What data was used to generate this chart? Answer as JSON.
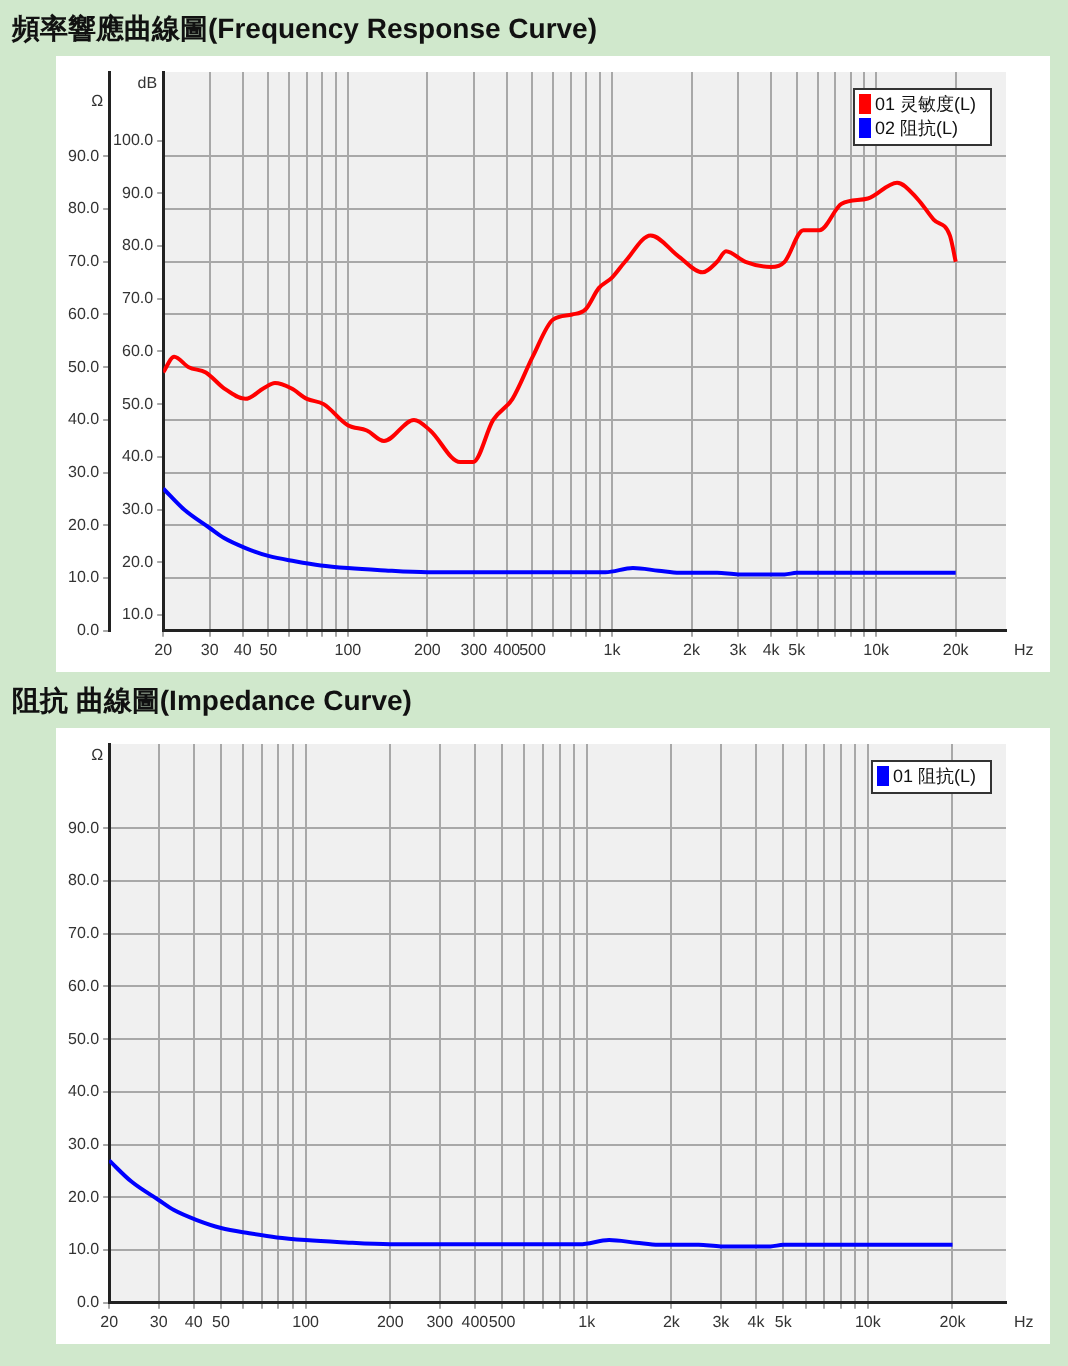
{
  "chart_data": [
    {
      "type": "line",
      "title": "頻率響應曲線圖(Frequency Response Curve)",
      "xlabel": "Hz",
      "ylabel": "dB",
      "y2label": "Ω",
      "log": "x",
      "xlim": [
        20,
        31000
      ],
      "xticks": [
        20,
        30,
        40,
        50,
        {
          "value": 60,
          "label": null
        },
        {
          "value": 70,
          "label": null
        },
        {
          "value": 80,
          "label": null
        },
        {
          "value": 90,
          "label": null
        },
        100,
        200,
        300,
        400,
        500,
        {
          "value": 600,
          "label": null
        },
        {
          "value": 700,
          "label": null
        },
        {
          "value": 800,
          "label": null
        },
        {
          "value": 900,
          "label": null
        },
        {
          "value": 1000,
          "label": "1k"
        },
        {
          "value": 2000,
          "label": "2k"
        },
        {
          "value": 3000,
          "label": "3k"
        },
        {
          "value": 4000,
          "label": "4k"
        },
        {
          "value": 5000,
          "label": "5k"
        },
        {
          "value": 6000,
          "label": null
        },
        {
          "value": 7000,
          "label": null
        },
        {
          "value": 8000,
          "label": null
        },
        {
          "value": 9000,
          "label": null
        },
        {
          "value": 10000,
          "label": "10k"
        },
        {
          "value": 20000,
          "label": "20k"
        }
      ],
      "ylim": [
        7,
        113
      ],
      "yticks": [
        {
          "value": 10,
          "label": "10.0"
        },
        {
          "value": 20,
          "label": "20.0"
        },
        {
          "value": 30,
          "label": "30.0"
        },
        {
          "value": 40,
          "label": "40.0"
        },
        {
          "value": 50,
          "label": "50.0"
        },
        {
          "value": 60,
          "label": "60.0"
        },
        {
          "value": 70,
          "label": "70.0"
        },
        {
          "value": 80,
          "label": "80.0"
        },
        {
          "value": 90,
          "label": "90.0"
        },
        {
          "value": 100,
          "label": "100.0"
        }
      ],
      "y2lim": [
        0,
        106
      ],
      "y2ticks": [
        {
          "value": 0,
          "label": "0.0"
        },
        {
          "value": 10,
          "label": "10.0"
        },
        {
          "value": 20,
          "label": "20.0"
        },
        {
          "value": 30,
          "label": "30.0"
        },
        {
          "value": 40,
          "label": "40.0"
        },
        {
          "value": 50,
          "label": "50.0"
        },
        {
          "value": 60,
          "label": "60.0"
        },
        {
          "value": 70,
          "label": "70.0"
        },
        {
          "value": 80,
          "label": "80.0"
        },
        {
          "value": 90,
          "label": "90.0"
        }
      ],
      "grid": true,
      "legend": "top right",
      "marker": "none",
      "line_style": "solid",
      "series": [
        {
          "name": "01 灵敏度(L)",
          "color": "#ff0000",
          "x": [
            20,
            22,
            25,
            29,
            34,
            41,
            48,
            53,
            61,
            70,
            81,
            100,
            118,
            137,
            178,
            205,
            266,
            298,
            355,
            420,
            501,
            597,
            707,
            795,
            891,
            1000,
            1120,
            1400,
            1790,
            2200,
            2500,
            2700,
            3200,
            4000,
            4500,
            5300,
            6100,
            7400,
            9300,
            12000,
            14300,
            16500,
            19000,
            20000
          ],
          "values": [
            56,
            59,
            57,
            56,
            53,
            51,
            53,
            54,
            53,
            51,
            50,
            46,
            45,
            43,
            47,
            45,
            39,
            39,
            47,
            51,
            59,
            66,
            67,
            68,
            72,
            74,
            77,
            82,
            78,
            75,
            77,
            79,
            77,
            76,
            77,
            83,
            83,
            88,
            89,
            92,
            89,
            85,
            82,
            77
          ]
        },
        {
          "name": "02 阻抗(L)",
          "color": "#0000ff",
          "axis": "y2",
          "x": [
            20,
            24,
            30,
            34,
            41,
            50,
            63,
            79,
            100,
            133,
            200,
            944,
            1200,
            1500,
            1800,
            2500,
            3000,
            4500,
            5000,
            20000
          ],
          "values": [
            27,
            23,
            19.5,
            17.6,
            15.7,
            14.2,
            13.2,
            12.4,
            11.9,
            11.5,
            11.1,
            11.1,
            11.9,
            11.4,
            11.0,
            11.0,
            10.7,
            10.7,
            11.0,
            11.0
          ]
        }
      ]
    },
    {
      "type": "line",
      "title": "阻抗 曲線圖(Impedance Curve)",
      "xlabel": "Hz",
      "ylabel": "Ω",
      "log": "x",
      "xlim": [
        20,
        31000
      ],
      "xticks": [
        20,
        30,
        40,
        50,
        {
          "value": 60,
          "label": null
        },
        {
          "value": 70,
          "label": null
        },
        {
          "value": 80,
          "label": null
        },
        {
          "value": 90,
          "label": null
        },
        100,
        200,
        300,
        400,
        500,
        {
          "value": 600,
          "label": null
        },
        {
          "value": 700,
          "label": null
        },
        {
          "value": 800,
          "label": null
        },
        {
          "value": 900,
          "label": null
        },
        {
          "value": 1000,
          "label": "1k"
        },
        {
          "value": 2000,
          "label": "2k"
        },
        {
          "value": 3000,
          "label": "3k"
        },
        {
          "value": 4000,
          "label": "4k"
        },
        {
          "value": 5000,
          "label": "5k"
        },
        {
          "value": 6000,
          "label": null
        },
        {
          "value": 7000,
          "label": null
        },
        {
          "value": 8000,
          "label": null
        },
        {
          "value": 9000,
          "label": null
        },
        {
          "value": 10000,
          "label": "10k"
        },
        {
          "value": 20000,
          "label": "20k"
        }
      ],
      "ylim": [
        0,
        106
      ],
      "yticks": [
        {
          "value": 0,
          "label": "0.0"
        },
        {
          "value": 10,
          "label": "10.0"
        },
        {
          "value": 20,
          "label": "20.0"
        },
        {
          "value": 30,
          "label": "30.0"
        },
        {
          "value": 40,
          "label": "40.0"
        },
        {
          "value": 50,
          "label": "50.0"
        },
        {
          "value": 60,
          "label": "60.0"
        },
        {
          "value": 70,
          "label": "70.0"
        },
        {
          "value": 80,
          "label": "80.0"
        },
        {
          "value": 90,
          "label": "90.0"
        }
      ],
      "grid": true,
      "legend": "top right",
      "marker": "none",
      "line_style": "solid",
      "series": [
        {
          "name": "01 阻抗(L)",
          "color": "#0000ff",
          "x": [
            20,
            24,
            30,
            34,
            41,
            50,
            63,
            79,
            100,
            133,
            200,
            944,
            1200,
            1500,
            1800,
            2500,
            3000,
            4500,
            5000,
            20000
          ],
          "values": [
            27,
            23,
            19.5,
            17.6,
            15.7,
            14.2,
            13.2,
            12.4,
            11.9,
            11.5,
            11.1,
            11.1,
            11.9,
            11.4,
            11.0,
            11.0,
            10.7,
            10.7,
            11.0,
            11.0
          ]
        }
      ]
    }
  ]
}
